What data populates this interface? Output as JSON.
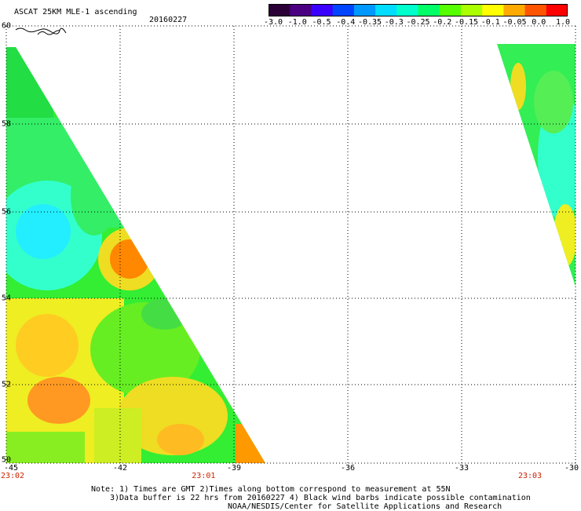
{
  "header": {
    "title": "ASCAT 25KM MLE-1 ascending",
    "date": "20160227"
  },
  "colorbar": {
    "labels": [
      "-3.0",
      "-1.0",
      "-0.5",
      "-0.4",
      "-0.35",
      "-0.3",
      "-0.25",
      "-0.2",
      "-0.15",
      "-0.1",
      "-0.05",
      "0.0",
      "1.0"
    ],
    "colors": [
      "#2a0036",
      "#4b0082",
      "#3a00ff",
      "#0044ff",
      "#0099ff",
      "#00ddff",
      "#00ffcc",
      "#00ff66",
      "#55ff00",
      "#aaff00",
      "#ffff00",
      "#ffaa00",
      "#ff5500",
      "#ff0000"
    ]
  },
  "axes": {
    "latitudes": [
      "60",
      "58",
      "56",
      "54",
      "52",
      "50"
    ],
    "longitudes": [
      "-45",
      "-42",
      "-39",
      "-36",
      "-33",
      "-30"
    ],
    "lat_range": [
      50,
      60
    ],
    "lon_range": [
      -45,
      -30
    ],
    "times": [
      {
        "label": "23:02",
        "lon": -45
      },
      {
        "label": "23:01",
        "lon": -39.8
      },
      {
        "label": "23:03",
        "lon": -31.2
      }
    ]
  },
  "notes": {
    "line1": "Note: 1) Times are GMT 2)Times along bottom correspond to measurement at 55N",
    "line2": "3)Data buffer is 22 hrs from 20160227 4) Black wind barbs indicate possible contamination",
    "line3": "NOAA/NESDIS/Center for Satellite Applications and Research"
  }
}
